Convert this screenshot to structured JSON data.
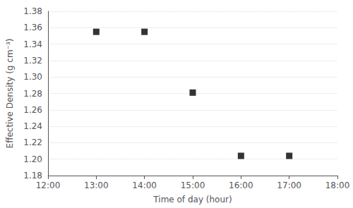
{
  "chart_data": {
    "type": "scatter",
    "xlabel": "Time of day (hour)",
    "ylabel": "Effective Density (g cm⁻³)",
    "x": [
      13,
      14,
      15,
      16,
      17
    ],
    "values": [
      1.355,
      1.355,
      1.281,
      1.204,
      1.204
    ],
    "color": "black",
    "marker": "square",
    "xlim": [
      12,
      18
    ],
    "xticks": [
      {
        "value": 12,
        "label": "12:00"
      },
      {
        "value": 13,
        "label": "13:00"
      },
      {
        "value": 14,
        "label": "14:00"
      },
      {
        "value": 15,
        "label": "15:00"
      },
      {
        "value": 16,
        "label": "16:00"
      },
      {
        "value": 17,
        "label": "17:00"
      },
      {
        "value": 18,
        "label": "18:00"
      }
    ],
    "ylim": [
      1.18,
      1.38
    ],
    "yticks": [
      1.18,
      {
        "value": 1.2,
        "label": "1.20"
      },
      1.22,
      1.24,
      1.26,
      1.28,
      {
        "value": 1.3,
        "label": "1.30"
      },
      1.32,
      1.34,
      1.36,
      1.38
    ],
    "grid": true
  }
}
